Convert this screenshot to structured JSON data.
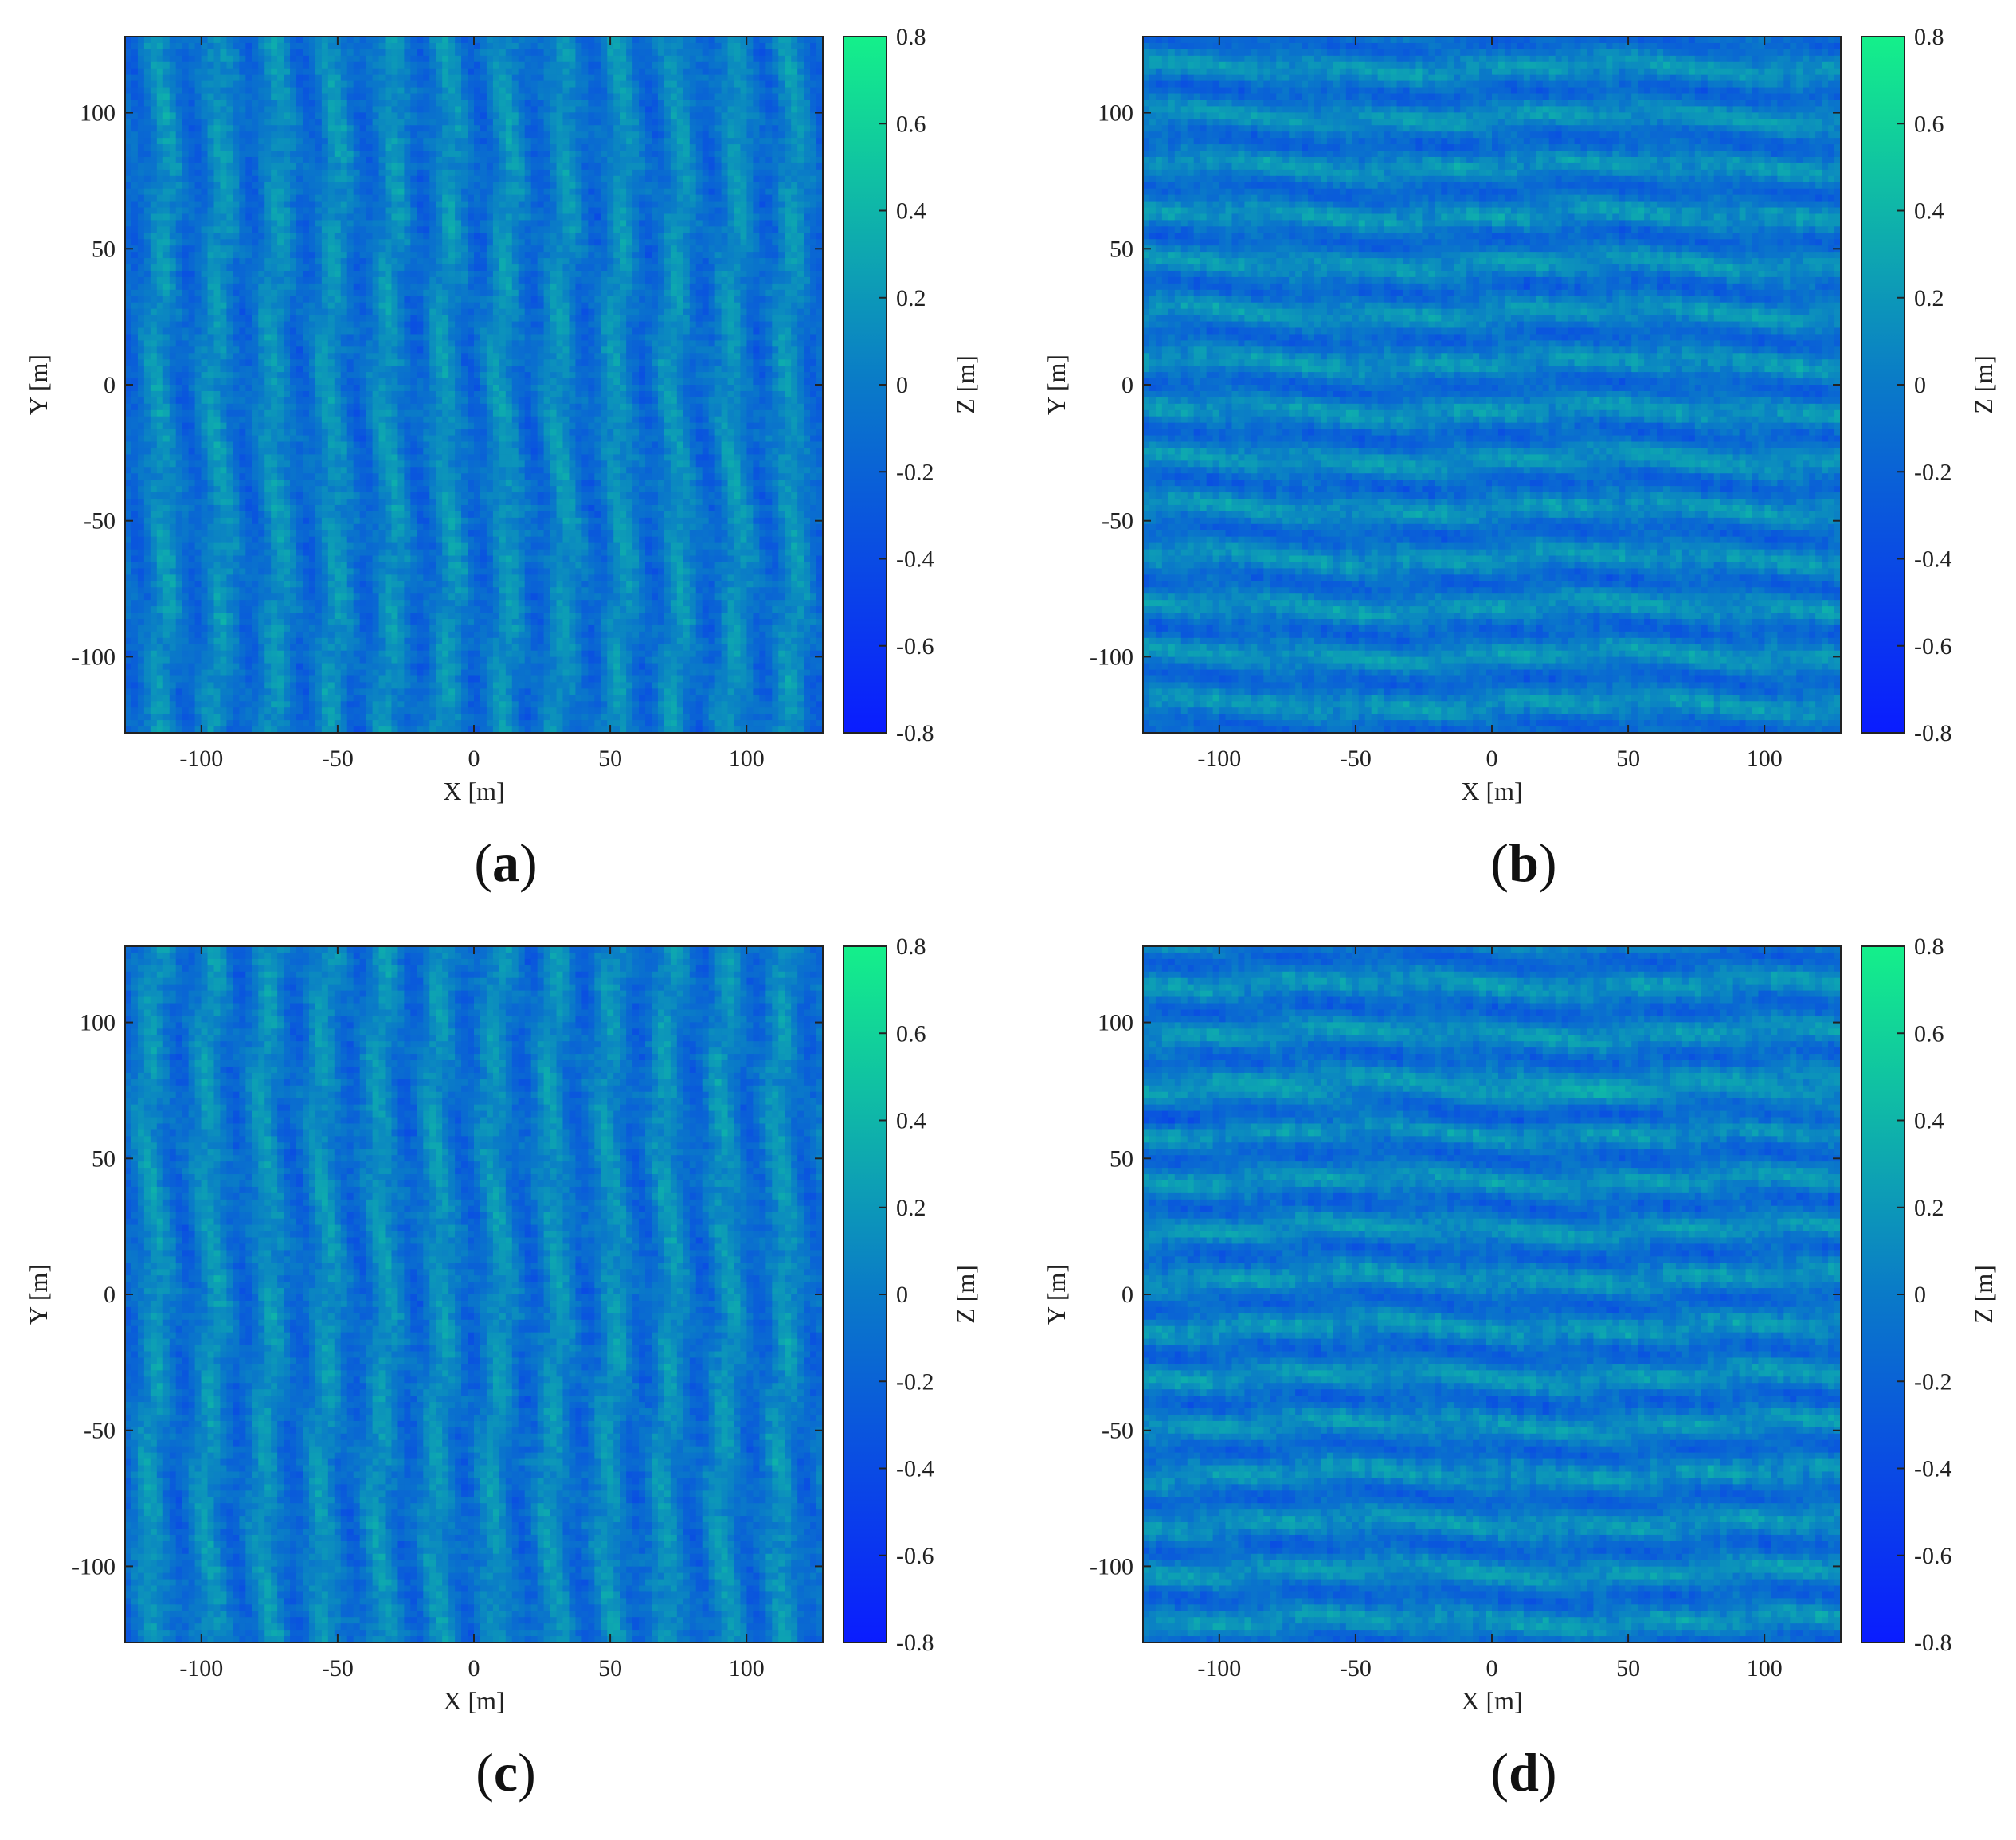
{
  "colormap": {
    "low_color": "#0a1cff",
    "mid_color": "#0a7ac8",
    "high_color": "#14f08a"
  },
  "chart_data": [
    {
      "type": "heatmap",
      "panel_label": "a",
      "xlabel": "X [m]",
      "ylabel": "Y [m]",
      "colorbar_label": "Z [m]",
      "xlim": [
        -128,
        128
      ],
      "ylim": [
        -128,
        128
      ],
      "zlim": [
        -0.8,
        0.8
      ],
      "x_ticks": [
        -100,
        -50,
        0,
        50,
        100
      ],
      "y_ticks": [
        100,
        50,
        0,
        -50,
        -100
      ],
      "colorbar_ticks": [
        0.8,
        0.6,
        0.4,
        0.2,
        0,
        -0.2,
        -0.4,
        -0.6,
        -0.8
      ],
      "pattern": "crests aligned with Y axis (vertical stripes)",
      "amplitude_estimate": 0.3
    },
    {
      "type": "heatmap",
      "panel_label": "b",
      "xlabel": "X [m]",
      "ylabel": "Y [m]",
      "colorbar_label": "Z [m]",
      "xlim": [
        -128,
        128
      ],
      "ylim": [
        -128,
        128
      ],
      "zlim": [
        -0.8,
        0.8
      ],
      "x_ticks": [
        -100,
        -50,
        0,
        50,
        100
      ],
      "y_ticks": [
        100,
        50,
        0,
        -50,
        -100
      ],
      "colorbar_ticks": [
        0.8,
        0.6,
        0.4,
        0.2,
        0,
        -0.2,
        -0.4,
        -0.6,
        -0.8
      ],
      "pattern": "crests aligned with X axis (horizontal stripes)",
      "amplitude_estimate": 0.3
    },
    {
      "type": "heatmap",
      "panel_label": "c",
      "xlabel": "X [m]",
      "ylabel": "Y [m]",
      "colorbar_label": "Z [m]",
      "xlim": [
        -128,
        128
      ],
      "ylim": [
        -128,
        128
      ],
      "zlim": [
        -0.8,
        0.8
      ],
      "x_ticks": [
        -100,
        -50,
        0,
        50,
        100
      ],
      "y_ticks": [
        100,
        50,
        0,
        -50,
        -100
      ],
      "colorbar_ticks": [
        0.8,
        0.6,
        0.4,
        0.2,
        0,
        -0.2,
        -0.4,
        -0.6,
        -0.8
      ],
      "pattern": "crests aligned with Y axis (vertical stripes)",
      "amplitude_estimate": 0.3
    },
    {
      "type": "heatmap",
      "panel_label": "d",
      "xlabel": "X [m]",
      "ylabel": "Y [m]",
      "colorbar_label": "Z [m]",
      "xlim": [
        -128,
        128
      ],
      "ylim": [
        -128,
        128
      ],
      "zlim": [
        -0.8,
        0.8
      ],
      "x_ticks": [
        -100,
        -50,
        0,
        50,
        100
      ],
      "y_ticks": [
        100,
        50,
        0,
        -50,
        -100
      ],
      "colorbar_ticks": [
        0.8,
        0.6,
        0.4,
        0.2,
        0,
        -0.2,
        -0.4,
        -0.6,
        -0.8
      ],
      "pattern": "crests aligned with X axis (horizontal stripes), strong band near Y = 70",
      "amplitude_estimate": 0.35
    }
  ]
}
